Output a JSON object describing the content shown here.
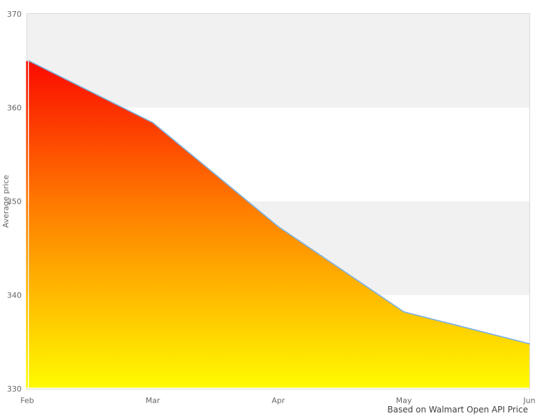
{
  "chart_data": {
    "type": "area",
    "title": "",
    "categories": [
      "Feb",
      "Mar",
      "Apr",
      "May",
      "Jun"
    ],
    "series": [
      {
        "name": "Average price",
        "values": [
          365,
          358.4,
          347.3,
          338.2,
          334.8
        ]
      }
    ],
    "xlabel": "",
    "ylabel": "Average price",
    "ylim": [
      330,
      370
    ],
    "yticks": [
      330,
      340,
      350,
      360,
      370
    ],
    "grid": "alternating horizontal bands gray/white, no vertical gridlines",
    "legend": "none",
    "caption": "Based on Walmart Open API Price",
    "colors": {
      "line": "#7fb2e0",
      "area_gradient_top": "#fb0a00",
      "area_gradient_mid": "#ff7d00",
      "area_gradient_bottom": "#fffb00",
      "band_gray": "#f1f1f1",
      "plot_border": "#d9d9d9",
      "tick_text": "#666666",
      "caption_text": "#3d3d3d"
    }
  }
}
